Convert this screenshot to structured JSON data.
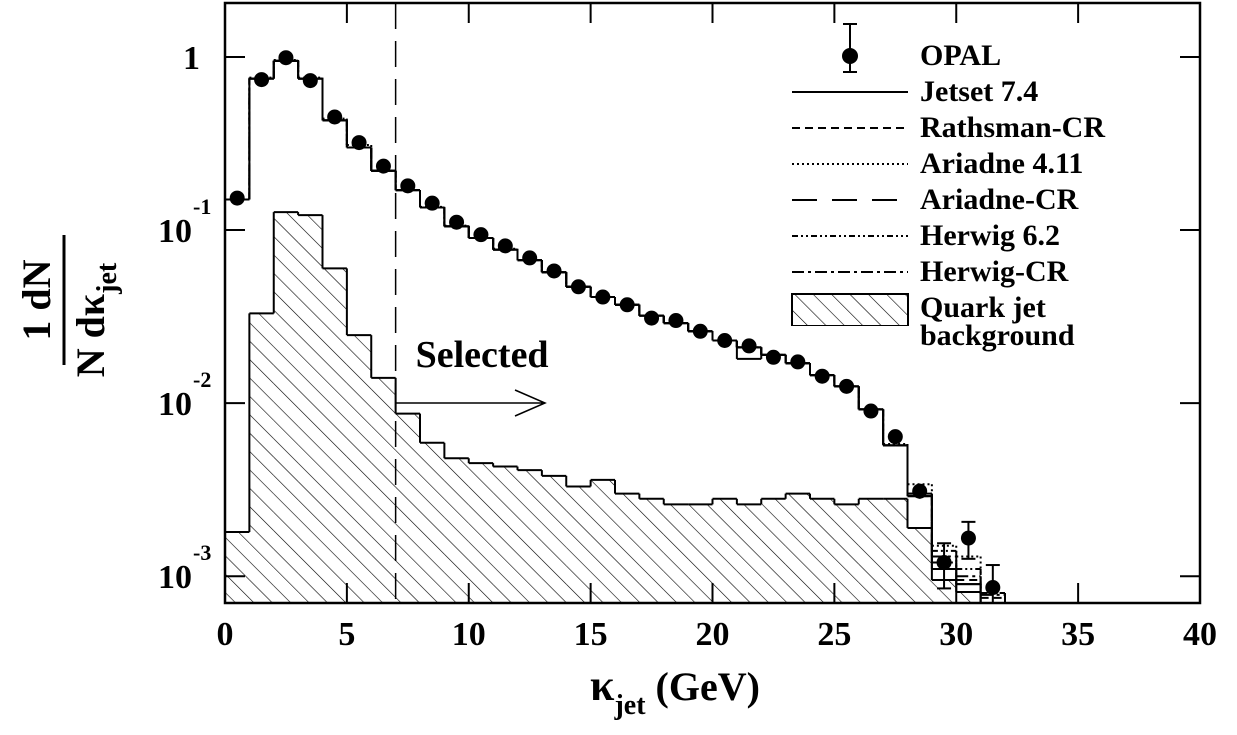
{
  "chart_data": {
    "type": "histogram",
    "xlabel": {
      "symbol": "κ",
      "subscript": "jet",
      "unit": "(GeV)"
    },
    "ylabel": {
      "numerator": "1 dN",
      "denominator": "N dκ",
      "subscript": "jet"
    },
    "xlim": [
      0,
      40
    ],
    "ylim": [
      0.0007,
      2.05
    ],
    "log_y": true,
    "xticks": [
      0,
      5,
      10,
      15,
      20,
      25,
      30,
      35,
      40
    ],
    "yticks": [
      1,
      {
        "value": 0.1,
        "label": "10",
        "exponent": "-1"
      },
      {
        "value": 0.01,
        "label": "10",
        "exponent": "-2"
      },
      {
        "value": 0.001,
        "label": "10",
        "exponent": "-3"
      }
    ],
    "legend": "upper right",
    "bins": [
      0,
      1,
      2,
      3,
      4,
      5,
      6,
      7,
      8,
      9,
      10,
      11,
      12,
      13,
      14,
      15,
      16,
      17,
      18,
      19,
      20,
      21,
      22,
      23,
      24,
      25,
      26,
      27,
      28,
      29,
      30,
      31,
      32
    ],
    "series": [
      {
        "name": "OPAL",
        "kind": "points",
        "color": "#000000",
        "x": [
          0.5,
          1.5,
          2.5,
          3.5,
          4.5,
          5.5,
          6.5,
          7.5,
          8.5,
          9.5,
          10.5,
          11.5,
          12.5,
          13.5,
          14.5,
          15.5,
          16.5,
          17.5,
          18.5,
          19.5,
          20.5,
          21.5,
          22.5,
          23.5,
          24.5,
          25.5,
          26.5,
          27.5,
          28.5,
          29.5,
          30.5,
          31.5
        ],
        "values": [
          0.153,
          0.74,
          0.99,
          0.73,
          0.45,
          0.32,
          0.234,
          0.18,
          0.143,
          0.111,
          0.094,
          0.081,
          0.069,
          0.058,
          0.047,
          0.041,
          0.037,
          0.031,
          0.03,
          0.026,
          0.023,
          0.0214,
          0.0184,
          0.0173,
          0.0143,
          0.0125,
          0.009,
          0.0064,
          0.0031,
          0.0012,
          0.00166,
          0.00086
        ],
        "errors": [
          0.005,
          0.02,
          0.03,
          0.02,
          0.012,
          0.008,
          0.006,
          0.004,
          0.003,
          0.003,
          0.002,
          0.002,
          0.0015,
          0.0013,
          0.001,
          0.001,
          0.0009,
          0.0008,
          0.0008,
          0.0007,
          0.0006,
          0.0006,
          0.0005,
          0.0005,
          0.0004,
          0.0004,
          0.0003,
          0.0003,
          0.0003,
          0.00035,
          0.0004,
          0.0003
        ]
      },
      {
        "name": "Jetset 7.4",
        "kind": "histogram",
        "color": "#000000",
        "dash": "none",
        "values": [
          0.15,
          0.75,
          0.95,
          0.75,
          0.43,
          0.3,
          0.22,
          0.17,
          0.135,
          0.105,
          0.09,
          0.077,
          0.067,
          0.057,
          0.047,
          0.041,
          0.037,
          0.032,
          0.029,
          0.026,
          0.023,
          0.021,
          0.019,
          0.017,
          0.0145,
          0.0125,
          0.0092,
          0.0057,
          0.0029,
          0.0011,
          0.0009,
          0.0007
        ]
      },
      {
        "name": "Rathsman-CR",
        "kind": "histogram",
        "color": "#000000",
        "dash": "8,5",
        "values": [
          0.15,
          0.75,
          0.95,
          0.75,
          0.43,
          0.3,
          0.22,
          0.17,
          0.135,
          0.105,
          0.09,
          0.077,
          0.067,
          0.057,
          0.047,
          0.041,
          0.037,
          0.032,
          0.029,
          0.026,
          0.023,
          0.021,
          0.019,
          0.017,
          0.0145,
          0.0125,
          0.0092,
          0.0057,
          0.0029,
          0.0012,
          0.00095,
          0.00075
        ]
      },
      {
        "name": "Ariadne 4.11",
        "kind": "histogram",
        "color": "#000000",
        "dash": "2,3",
        "values": [
          0.15,
          0.76,
          0.96,
          0.76,
          0.44,
          0.31,
          0.22,
          0.17,
          0.136,
          0.106,
          0.09,
          0.078,
          0.067,
          0.057,
          0.047,
          0.041,
          0.037,
          0.032,
          0.029,
          0.026,
          0.023,
          0.021,
          0.019,
          0.017,
          0.0145,
          0.0125,
          0.0092,
          0.0058,
          0.0034,
          0.0015,
          0.0013,
          0.0008
        ]
      },
      {
        "name": "Ariadne-CR",
        "kind": "histogram",
        "color": "#000000",
        "dash": "25,15",
        "values": [
          0.15,
          0.75,
          0.95,
          0.75,
          0.43,
          0.3,
          0.22,
          0.17,
          0.135,
          0.105,
          0.09,
          0.077,
          0.067,
          0.057,
          0.047,
          0.041,
          0.037,
          0.032,
          0.029,
          0.026,
          0.023,
          0.018,
          0.019,
          0.017,
          0.0145,
          0.0125,
          0.0092,
          0.0057,
          0.0029,
          0.0011,
          0.0009,
          0.0007
        ]
      },
      {
        "name": "Herwig 6.2",
        "kind": "histogram",
        "color": "#000000",
        "dash": "6,3,2,3,2,3",
        "values": [
          0.15,
          0.75,
          0.95,
          0.75,
          0.43,
          0.3,
          0.22,
          0.17,
          0.135,
          0.105,
          0.09,
          0.077,
          0.067,
          0.057,
          0.047,
          0.041,
          0.037,
          0.032,
          0.029,
          0.026,
          0.023,
          0.021,
          0.019,
          0.017,
          0.0145,
          0.0125,
          0.0092,
          0.0057,
          0.003,
          0.0014,
          0.0011,
          0.0008
        ]
      },
      {
        "name": "Herwig-CR",
        "kind": "histogram",
        "color": "#000000",
        "dash": "12,4,3,4",
        "values": [
          0.15,
          0.75,
          0.95,
          0.75,
          0.43,
          0.3,
          0.22,
          0.17,
          0.135,
          0.105,
          0.09,
          0.077,
          0.067,
          0.057,
          0.047,
          0.041,
          0.037,
          0.032,
          0.029,
          0.026,
          0.023,
          0.021,
          0.019,
          0.017,
          0.0145,
          0.0125,
          0.0092,
          0.0057,
          0.003,
          0.0013,
          0.001,
          0.00078
        ]
      }
    ],
    "background": {
      "name": "Quark jet background",
      "color": "#000000",
      "hatch": true,
      "bins": [
        0,
        1,
        2,
        3,
        4,
        5,
        6,
        7,
        8,
        9,
        10,
        11,
        12,
        13,
        14,
        15,
        16,
        17,
        18,
        19,
        20,
        21,
        22,
        23,
        24,
        25,
        26,
        27,
        28,
        29,
        30,
        31
      ],
      "values": [
        0.0018,
        0.033,
        0.127,
        0.122,
        0.06,
        0.0247,
        0.014,
        0.0087,
        0.0059,
        0.0048,
        0.0045,
        0.0043,
        0.0041,
        0.0038,
        0.0033,
        0.0036,
        0.003,
        0.0028,
        0.0026,
        0.0026,
        0.0028,
        0.0026,
        0.0028,
        0.003,
        0.0028,
        0.0026,
        0.0028,
        0.0028,
        0.0019,
        0.00095,
        0.00081
      ]
    },
    "selection": {
      "label": "Selected",
      "x": 7
    }
  }
}
